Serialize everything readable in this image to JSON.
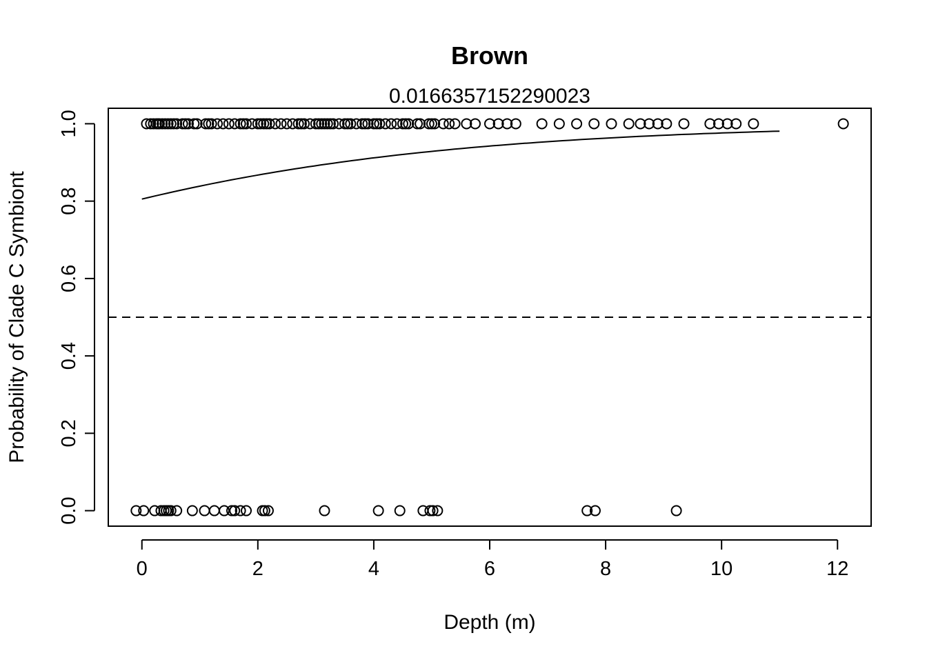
{
  "chart_data": {
    "type": "scatter",
    "title": "Brown",
    "subtitle": "0.0166357152290023",
    "xlabel": "Depth (m)",
    "ylabel": "Probability of Clade C Symbiont",
    "xlim": [
      -0.58,
      12.58
    ],
    "ylim": [
      -0.04,
      1.04
    ],
    "x_ticks": [
      0,
      2,
      4,
      6,
      8,
      10,
      12
    ],
    "y_ticks": [
      0.0,
      0.2,
      0.4,
      0.6,
      0.8,
      1.0
    ],
    "x_tick_labels": [
      "0",
      "2",
      "4",
      "6",
      "8",
      "10",
      "12"
    ],
    "y_tick_labels": [
      "0.0",
      "0.2",
      "0.4",
      "0.6",
      "0.8",
      "1.0"
    ],
    "grid": false,
    "reference_line": {
      "y": 0.5,
      "style": "dashed"
    },
    "fit_curve": {
      "type": "logistic",
      "x_range": [
        0,
        11
      ],
      "intercept": 1.42,
      "slope": 0.229
    },
    "series": [
      {
        "y": 1,
        "x": [
          0.08,
          0.15,
          0.2,
          0.25,
          0.28,
          0.3,
          0.35,
          0.4,
          0.45,
          0.5,
          0.55,
          0.6,
          0.7,
          0.75,
          0.8,
          0.9,
          0.95,
          1.1,
          1.15,
          1.2,
          1.3,
          1.4,
          1.5,
          1.6,
          1.7,
          1.75,
          1.8,
          1.9,
          2.0,
          2.05,
          2.1,
          2.15,
          2.2,
          2.3,
          2.4,
          2.5,
          2.6,
          2.7,
          2.75,
          2.8,
          2.9,
          3.0,
          3.05,
          3.1,
          3.15,
          3.2,
          3.25,
          3.3,
          3.4,
          3.5,
          3.55,
          3.6,
          3.7,
          3.8,
          3.85,
          3.9,
          4.0,
          4.05,
          4.1,
          4.2,
          4.3,
          4.4,
          4.5,
          4.55,
          4.6,
          4.75,
          4.8,
          4.95,
          5.0,
          5.05,
          5.2,
          5.3,
          5.4,
          5.6,
          5.75,
          6.0,
          6.15,
          6.3,
          6.45,
          6.9,
          7.2,
          7.5,
          7.8,
          8.1,
          8.4,
          8.6,
          8.75,
          8.9,
          9.05,
          9.35,
          9.8,
          9.95,
          10.1,
          10.25,
          10.55,
          12.1
        ]
      },
      {
        "y": 0,
        "x": [
          -0.1,
          0.03,
          0.22,
          0.33,
          0.38,
          0.42,
          0.46,
          0.5,
          0.6,
          0.87,
          1.08,
          1.25,
          1.42,
          1.55,
          1.6,
          1.7,
          1.8,
          2.08,
          2.12,
          2.18,
          3.15,
          4.08,
          4.45,
          4.85,
          4.97,
          5.02,
          5.1,
          7.68,
          7.82,
          9.22
        ]
      }
    ]
  }
}
